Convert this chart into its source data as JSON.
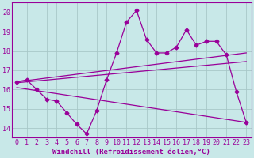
{
  "background_color": "#c8e8e8",
  "grid_color": "#a8c8c8",
  "line_color": "#990099",
  "xlabel": "Windchill (Refroidissement éolien,°C)",
  "xlim": [
    -0.5,
    23.5
  ],
  "ylim": [
    13.5,
    20.5
  ],
  "yticks": [
    14,
    15,
    16,
    17,
    18,
    19,
    20
  ],
  "xticks": [
    0,
    1,
    2,
    3,
    4,
    5,
    6,
    7,
    8,
    9,
    10,
    11,
    12,
    13,
    14,
    15,
    16,
    17,
    18,
    19,
    20,
    21,
    22,
    23
  ],
  "series1_x": [
    0,
    1,
    2,
    3,
    4,
    5,
    6,
    7,
    8,
    9,
    10,
    11,
    12,
    13,
    14,
    15,
    16,
    17,
    18,
    19,
    20,
    21,
    22,
    23
  ],
  "series1_y": [
    16.4,
    16.5,
    16.0,
    15.5,
    15.4,
    14.8,
    14.2,
    13.7,
    14.9,
    16.5,
    17.9,
    19.5,
    20.1,
    18.6,
    17.9,
    17.9,
    18.2,
    19.1,
    18.3,
    18.5,
    18.5,
    17.8,
    15.9,
    14.3
  ],
  "series2_x": [
    0,
    23
  ],
  "series2_y": [
    16.4,
    17.9
  ],
  "series3_x": [
    0,
    23
  ],
  "series3_y": [
    16.35,
    17.45
  ],
  "series4_x": [
    0,
    23
  ],
  "series4_y": [
    16.1,
    14.3
  ],
  "xlabel_fontsize": 6.5,
  "tick_fontsize": 6.0
}
